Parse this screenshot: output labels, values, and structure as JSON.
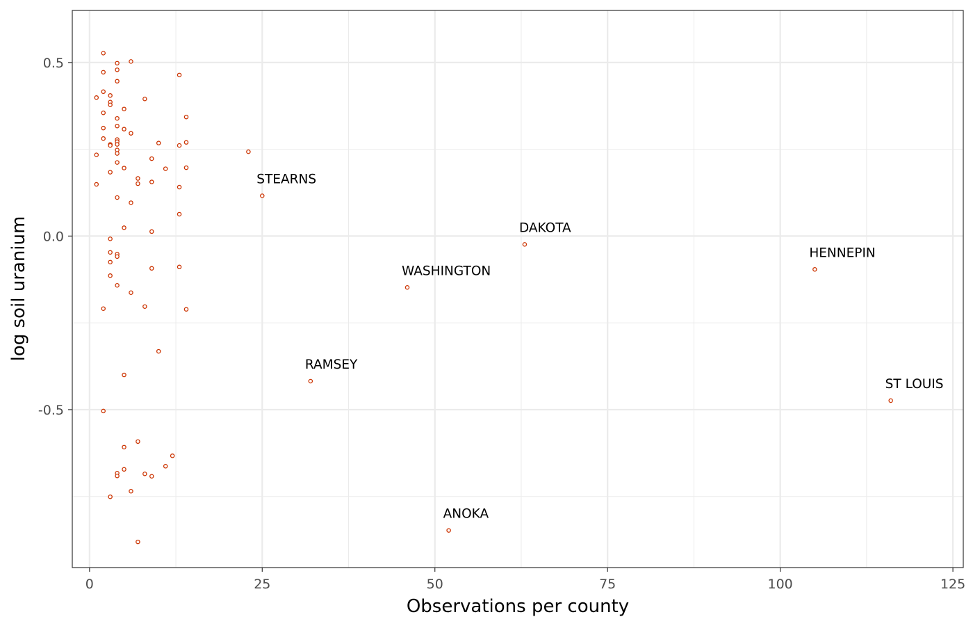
{
  "chart_data": {
    "type": "scatter",
    "xlabel": "Observations per county",
    "ylabel": "log soil uranium",
    "xlim": [
      -2.5,
      126.5
    ],
    "ylim": [
      -0.955,
      0.65
    ],
    "xticks": [
      0,
      25,
      50,
      75,
      100,
      125
    ],
    "xtick_labels": [
      "0",
      "25",
      "50",
      "75",
      "100",
      "125"
    ],
    "yticks": [
      0.5,
      0.0,
      -0.5
    ],
    "ytick_labels": [
      "0.5",
      "0.0",
      "-0.5"
    ],
    "grid": true,
    "point_color": "#cc3300",
    "points": [
      {
        "x": 2,
        "y": 0.527
      },
      {
        "x": 6,
        "y": 0.503
      },
      {
        "x": 4,
        "y": 0.498
      },
      {
        "x": 4,
        "y": 0.479
      },
      {
        "x": 2,
        "y": 0.472
      },
      {
        "x": 13,
        "y": 0.464
      },
      {
        "x": 4,
        "y": 0.446
      },
      {
        "x": 2,
        "y": 0.416
      },
      {
        "x": 3,
        "y": 0.405
      },
      {
        "x": 1,
        "y": 0.399
      },
      {
        "x": 8,
        "y": 0.395
      },
      {
        "x": 3,
        "y": 0.386
      },
      {
        "x": 3,
        "y": 0.378
      },
      {
        "x": 5,
        "y": 0.366
      },
      {
        "x": 2,
        "y": 0.355
      },
      {
        "x": 14,
        "y": 0.343
      },
      {
        "x": 4,
        "y": 0.339
      },
      {
        "x": 4,
        "y": 0.317
      },
      {
        "x": 2,
        "y": 0.311
      },
      {
        "x": 5,
        "y": 0.308
      },
      {
        "x": 6,
        "y": 0.296
      },
      {
        "x": 2,
        "y": 0.281
      },
      {
        "x": 4,
        "y": 0.278
      },
      {
        "x": 4,
        "y": 0.272
      },
      {
        "x": 14,
        "y": 0.27
      },
      {
        "x": 10,
        "y": 0.268
      },
      {
        "x": 3,
        "y": 0.264
      },
      {
        "x": 3,
        "y": 0.261
      },
      {
        "x": 4,
        "y": 0.264
      },
      {
        "x": 13,
        "y": 0.261
      },
      {
        "x": 4,
        "y": 0.248
      },
      {
        "x": 23,
        "y": 0.243
      },
      {
        "x": 4,
        "y": 0.238
      },
      {
        "x": 1,
        "y": 0.234
      },
      {
        "x": 9,
        "y": 0.223
      },
      {
        "x": 4,
        "y": 0.212
      },
      {
        "x": 14,
        "y": 0.197
      },
      {
        "x": 5,
        "y": 0.196
      },
      {
        "x": 11,
        "y": 0.194
      },
      {
        "x": 3,
        "y": 0.184
      },
      {
        "x": 7,
        "y": 0.166
      },
      {
        "x": 9,
        "y": 0.156
      },
      {
        "x": 7,
        "y": 0.151
      },
      {
        "x": 1,
        "y": 0.149
      },
      {
        "x": 13,
        "y": 0.141
      },
      {
        "x": 25,
        "y": 0.116
      },
      {
        "x": 4,
        "y": 0.111
      },
      {
        "x": 6,
        "y": 0.096
      },
      {
        "x": 13,
        "y": 0.063
      },
      {
        "x": 5,
        "y": 0.024
      },
      {
        "x": 9,
        "y": 0.013
      },
      {
        "x": 3,
        "y": -0.008
      },
      {
        "x": 3,
        "y": -0.047
      },
      {
        "x": 4,
        "y": -0.052
      },
      {
        "x": 4,
        "y": -0.059
      },
      {
        "x": 3,
        "y": -0.075
      },
      {
        "x": 13,
        "y": -0.089
      },
      {
        "x": 9,
        "y": -0.093
      },
      {
        "x": 3,
        "y": -0.114
      },
      {
        "x": 4,
        "y": -0.142
      },
      {
        "x": 46,
        "y": -0.148
      },
      {
        "x": 6,
        "y": -0.163
      },
      {
        "x": 8,
        "y": -0.203
      },
      {
        "x": 2,
        "y": -0.209
      },
      {
        "x": 14,
        "y": -0.211
      },
      {
        "x": 10,
        "y": -0.332
      },
      {
        "x": 5,
        "y": -0.4
      },
      {
        "x": 32,
        "y": -0.418
      },
      {
        "x": 116,
        "y": -0.474
      },
      {
        "x": 2,
        "y": -0.504
      },
      {
        "x": 7,
        "y": -0.592
      },
      {
        "x": 5,
        "y": -0.608
      },
      {
        "x": 12,
        "y": -0.633
      },
      {
        "x": 11,
        "y": -0.663
      },
      {
        "x": 5,
        "y": -0.672
      },
      {
        "x": 4,
        "y": -0.683
      },
      {
        "x": 8,
        "y": -0.685
      },
      {
        "x": 4,
        "y": -0.691
      },
      {
        "x": 9,
        "y": -0.692
      },
      {
        "x": 6,
        "y": -0.735
      },
      {
        "x": 3,
        "y": -0.751
      },
      {
        "x": 52,
        "y": -0.848
      },
      {
        "x": 7,
        "y": -0.881
      },
      {
        "x": 63,
        "y": -0.024
      },
      {
        "x": 105,
        "y": -0.096
      }
    ],
    "labels": [
      {
        "text": "STEARNS",
        "x": 25,
        "y": 0.116
      },
      {
        "text": "DAKOTA",
        "x": 63,
        "y": -0.024
      },
      {
        "text": "HENNEPIN",
        "x": 105,
        "y": -0.096
      },
      {
        "text": "WASHINGTON",
        "x": 46,
        "y": -0.148
      },
      {
        "text": "RAMSEY",
        "x": 32,
        "y": -0.418
      },
      {
        "text": "ST LOUIS",
        "x": 116,
        "y": -0.474
      },
      {
        "text": "ANOKA",
        "x": 52,
        "y": -0.848
      }
    ]
  }
}
